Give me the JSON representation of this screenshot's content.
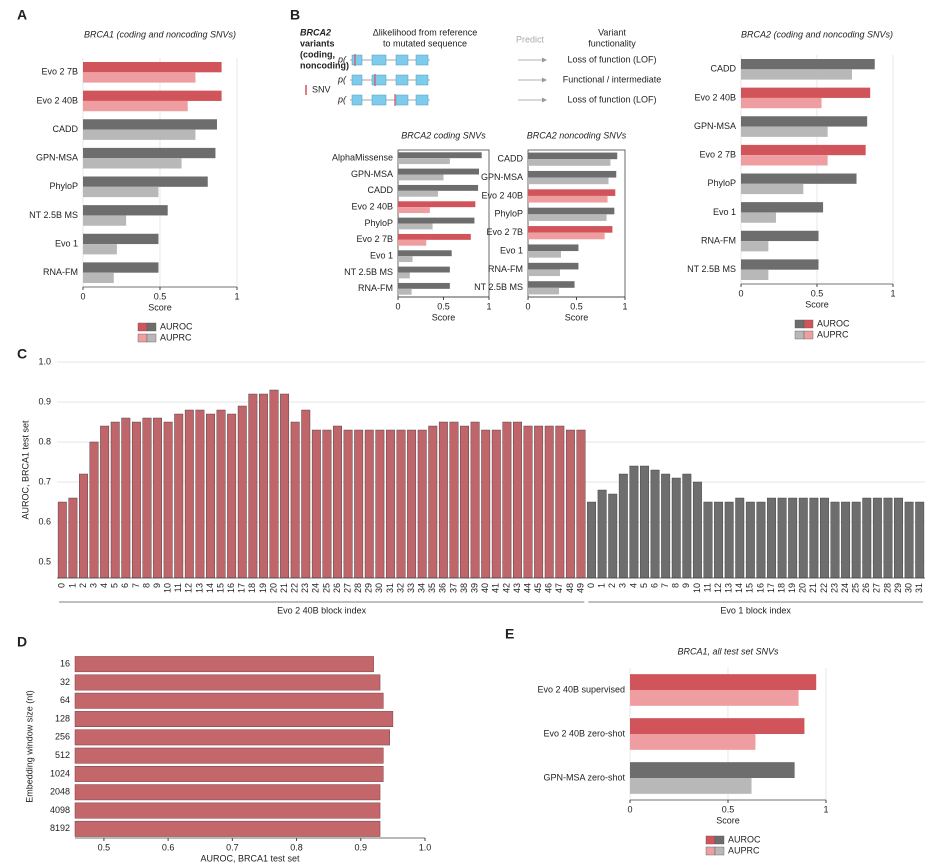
{
  "diagram": {
    "panel": "B",
    "variants_label": [
      "BRCA2",
      "variants",
      "(coding,",
      "noncoding)"
    ],
    "snv_label": "SNV",
    "delta_label": [
      "Δlikelihood from reference",
      "to mutated sequence"
    ],
    "predict_label": "Predict",
    "functionality_label": [
      "Variant",
      "functionality"
    ],
    "p_label": "p(",
    "outcomes": [
      "Loss of function (LOF)",
      "Functional / intermediate",
      "Loss of function (LOF)"
    ]
  },
  "chart_data": [
    {
      "panel": "A",
      "type": "hbar",
      "title": "BRCA1 (coding and noncoding SNVs)",
      "categories": [
        "Evo 2 7B",
        "Evo 2 40B",
        "CADD",
        "GPN-MSA",
        "PhyloP",
        "NT 2.5B MS",
        "Evo 1",
        "RNA-FM"
      ],
      "series": [
        {
          "name": "AUROC",
          "colors": [
            "#d2545b",
            "#d2545b",
            "#6d6d6d",
            "#6d6d6d",
            "#6d6d6d",
            "#6d6d6d",
            "#6d6d6d",
            "#6d6d6d"
          ],
          "values": [
            0.9,
            0.9,
            0.87,
            0.86,
            0.81,
            0.55,
            0.49,
            0.49
          ]
        },
        {
          "name": "AUPRC",
          "colors": [
            "#ee9ea0",
            "#ee9ea0",
            "#b8b8b8",
            "#b8b8b8",
            "#b8b8b8",
            "#b8b8b8",
            "#b8b8b8",
            "#b8b8b8"
          ],
          "values": [
            0.73,
            0.68,
            0.73,
            0.64,
            0.49,
            0.28,
            0.22,
            0.2
          ]
        }
      ],
      "xlim": [
        0,
        1
      ],
      "xticks": [
        0,
        0.5,
        1
      ],
      "xlabel": "Score",
      "grid": true,
      "legend": "bottom"
    },
    {
      "type": "hbar",
      "title": "BRCA2 coding SNVs",
      "categories": [
        "AlphaMissense",
        "GPN-MSA",
        "CADD",
        "Evo 2 40B",
        "PhyloP",
        "Evo 2 7B",
        "Evo 1",
        "NT 2.5B MS",
        "RNA-FM"
      ],
      "series": [
        {
          "name": "AUROC",
          "colors": [
            "#6d6d6d",
            "#6d6d6d",
            "#6d6d6d",
            "#d2545b",
            "#6d6d6d",
            "#d2545b",
            "#6d6d6d",
            "#6d6d6d",
            "#6d6d6d"
          ],
          "values": [
            0.92,
            0.89,
            0.88,
            0.85,
            0.84,
            0.8,
            0.59,
            0.57,
            0.57
          ]
        },
        {
          "name": "AUPRC",
          "colors": [
            "#b8b8b8",
            "#b8b8b8",
            "#b8b8b8",
            "#ee9ea0",
            "#b8b8b8",
            "#ee9ea0",
            "#b8b8b8",
            "#b8b8b8",
            "#b8b8b8"
          ],
          "values": [
            0.57,
            0.5,
            0.44,
            0.35,
            0.38,
            0.31,
            0.16,
            0.13,
            0.15
          ]
        }
      ],
      "xlim": [
        0,
        1
      ],
      "xticks": [
        0,
        0.5,
        1
      ],
      "xlabel": "Score",
      "frame": true
    },
    {
      "type": "hbar",
      "title": "BRCA2 noncoding SNVs",
      "categories": [
        "CADD",
        "GPN-MSA",
        "Evo 2 40B",
        "PhyloP",
        "Evo 2 7B",
        "Evo 1",
        "RNA-FM",
        "NT 2.5B MS"
      ],
      "series": [
        {
          "name": "AUROC",
          "colors": [
            "#6d6d6d",
            "#6d6d6d",
            "#d2545b",
            "#6d6d6d",
            "#d2545b",
            "#6d6d6d",
            "#6d6d6d",
            "#6d6d6d"
          ],
          "values": [
            0.92,
            0.91,
            0.9,
            0.89,
            0.87,
            0.52,
            0.52,
            0.48
          ]
        },
        {
          "name": "AUPRC",
          "colors": [
            "#b8b8b8",
            "#b8b8b8",
            "#ee9ea0",
            "#b8b8b8",
            "#ee9ea0",
            "#b8b8b8",
            "#b8b8b8",
            "#b8b8b8"
          ],
          "values": [
            0.85,
            0.83,
            0.82,
            0.81,
            0.79,
            0.34,
            0.33,
            0.32
          ]
        }
      ],
      "xlim": [
        0,
        1
      ],
      "xticks": [
        0,
        0.5,
        1
      ],
      "xlabel": "Score",
      "frame": true
    },
    {
      "type": "hbar",
      "title": "BRCA2 (coding and noncoding SNVs)",
      "categories": [
        "CADD",
        "Evo 2 40B",
        "GPN-MSA",
        "Evo 2 7B",
        "PhyloP",
        "Evo 1",
        "RNA-FM",
        "NT 2.5B MS"
      ],
      "series": [
        {
          "name": "AUROC",
          "colors": [
            "#6d6d6d",
            "#d2545b",
            "#6d6d6d",
            "#d2545b",
            "#6d6d6d",
            "#6d6d6d",
            "#6d6d6d",
            "#6d6d6d"
          ],
          "values": [
            0.88,
            0.85,
            0.83,
            0.82,
            0.76,
            0.54,
            0.51,
            0.51
          ]
        },
        {
          "name": "AUPRC",
          "colors": [
            "#b8b8b8",
            "#ee9ea0",
            "#b8b8b8",
            "#ee9ea0",
            "#b8b8b8",
            "#b8b8b8",
            "#b8b8b8",
            "#b8b8b8"
          ],
          "values": [
            0.73,
            0.53,
            0.57,
            0.57,
            0.41,
            0.23,
            0.18,
            0.18
          ]
        }
      ],
      "xlim": [
        0,
        1
      ],
      "xticks": [
        0,
        0.5,
        1
      ],
      "xlabel": "Score",
      "grid": true,
      "legend": "bottom"
    },
    {
      "panel": "C",
      "type": "grouped-column",
      "ylabel": "AUROC, BRCA1 test set",
      "groups": [
        {
          "name": "Evo 2 40B block index",
          "color": "#c0666a",
          "categories": [
            "0",
            "1",
            "2",
            "3",
            "4",
            "5",
            "6",
            "7",
            "8",
            "9",
            "10",
            "11",
            "12",
            "13",
            "14",
            "15",
            "16",
            "17",
            "18",
            "19",
            "20",
            "21",
            "22",
            "23",
            "24",
            "25",
            "26",
            "27",
            "28",
            "29",
            "30",
            "31",
            "32",
            "33",
            "34",
            "35",
            "36",
            "37",
            "38",
            "39",
            "40",
            "41",
            "42",
            "43",
            "44",
            "45",
            "46",
            "47",
            "48",
            "49"
          ],
          "values": [
            0.65,
            0.66,
            0.72,
            0.8,
            0.84,
            0.85,
            0.86,
            0.85,
            0.86,
            0.86,
            0.85,
            0.87,
            0.88,
            0.88,
            0.87,
            0.88,
            0.87,
            0.89,
            0.92,
            0.92,
            0.93,
            0.92,
            0.85,
            0.88,
            0.83,
            0.83,
            0.84,
            0.83,
            0.83,
            0.83,
            0.83,
            0.83,
            0.83,
            0.83,
            0.83,
            0.84,
            0.85,
            0.85,
            0.84,
            0.85,
            0.83,
            0.83,
            0.85,
            0.85,
            0.84,
            0.84,
            0.84,
            0.84,
            0.83,
            0.83
          ]
        },
        {
          "name": "Evo 1 block index",
          "color": "#6e6e6e",
          "categories": [
            "0",
            "1",
            "2",
            "3",
            "4",
            "5",
            "6",
            "7",
            "8",
            "9",
            "10",
            "11",
            "12",
            "13",
            "14",
            "15",
            "16",
            "17",
            "18",
            "19",
            "20",
            "21",
            "22",
            "23",
            "24",
            "25",
            "26",
            "27",
            "28",
            "29",
            "30",
            "31"
          ],
          "values": [
            0.65,
            0.68,
            0.67,
            0.72,
            0.74,
            0.74,
            0.73,
            0.72,
            0.71,
            0.72,
            0.7,
            0.65,
            0.65,
            0.65,
            0.66,
            0.65,
            0.65,
            0.66,
            0.66,
            0.66,
            0.66,
            0.66,
            0.66,
            0.65,
            0.65,
            0.65,
            0.66,
            0.66,
            0.66,
            0.66,
            0.65,
            0.65
          ]
        }
      ],
      "ylim": [
        0.46,
        1
      ],
      "yticks": [
        0.5,
        0.6,
        0.7,
        0.8,
        0.9,
        {
          "value": 1,
          "label": "1.0"
        }
      ],
      "grid": true
    },
    {
      "panel": "D",
      "type": "hbar",
      "ylabel": "Embedding window size (nt)",
      "xlabel": "AUROC, BRCA1 test set",
      "categories": [
        "16",
        "32",
        "64",
        "128",
        "256",
        "512",
        "1024",
        "2048",
        "4098",
        "8192"
      ],
      "values": [
        0.92,
        0.93,
        0.935,
        0.95,
        0.945,
        0.935,
        0.935,
        0.93,
        0.93,
        0.93
      ],
      "color": "#c4676b",
      "xlim": [
        0.455,
        1
      ],
      "xticks": [
        0.5,
        0.6,
        0.7,
        0.8,
        0.9,
        {
          "value": 1,
          "label": "1.0"
        }
      ]
    },
    {
      "panel": "E",
      "type": "hbar",
      "title": "BRCA1, all test set SNVs",
      "categories": [
        "Evo 2 40B supervised",
        "Evo 2 40B zero-shot",
        "GPN-MSA zero-shot"
      ],
      "series": [
        {
          "name": "AUROC",
          "colors": [
            "#d2545b",
            "#d2545b",
            "#6d6d6d"
          ],
          "values": [
            0.95,
            0.89,
            0.84
          ]
        },
        {
          "name": "AUPRC",
          "colors": [
            "#ee9ea0",
            "#ee9ea0",
            "#b8b8b8"
          ],
          "values": [
            0.86,
            0.64,
            0.62
          ]
        }
      ],
      "xlim": [
        0,
        1
      ],
      "xticks": [
        0,
        0.5,
        1
      ],
      "xlabel": "Score",
      "grid": true,
      "legend": "bottom"
    }
  ]
}
